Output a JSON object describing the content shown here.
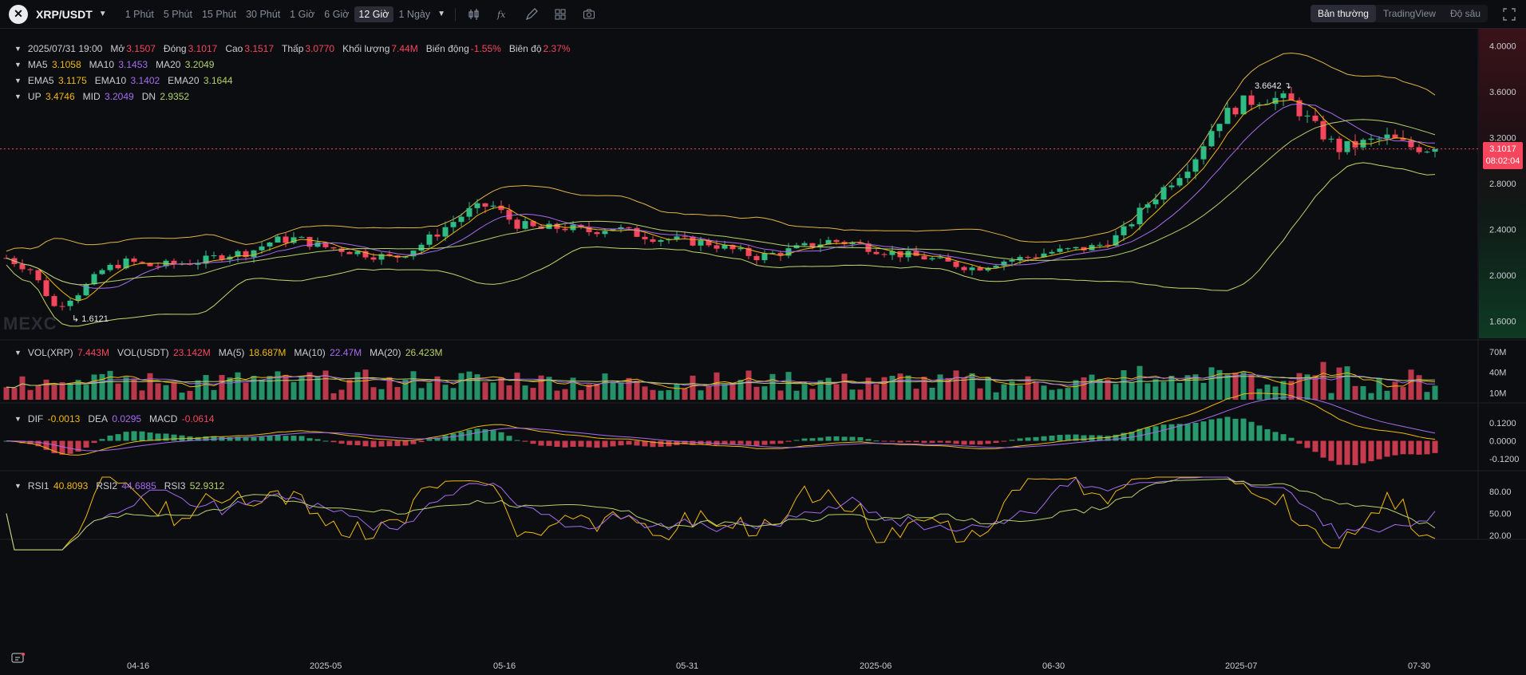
{
  "toolbar": {
    "symbol": "XRP/USDT",
    "intervals": [
      "1 Phút",
      "5 Phút",
      "15 Phút",
      "30 Phút",
      "1 Giờ",
      "6 Giờ",
      "12 Giờ",
      "1 Ngày"
    ],
    "active_interval": "12 Giờ",
    "views": [
      "Bản thường",
      "TradingView",
      "Độ sâu"
    ],
    "active_view": "Bản thường",
    "tools": [
      "candle-type-icon",
      "indicator-icon",
      "draw-icon",
      "layout-icon",
      "camera-icon"
    ]
  },
  "ohlc": {
    "date": "2025/07/31 19:00",
    "open_label": "Mở",
    "open": "3.1507",
    "close_label": "Đóng",
    "close": "3.1017",
    "high_label": "Cao",
    "high": "3.1517",
    "low_label": "Thấp",
    "low": "3.0770",
    "volume_label": "Khối lượng",
    "volume": "7.44M",
    "change_label": "Biến động",
    "change": "-1.55%",
    "amplitude_label": "Biên độ",
    "amplitude": "2.37%"
  },
  "ma": {
    "ma5_label": "MA5",
    "ma5": "3.1058",
    "ma10_label": "MA10",
    "ma10": "3.1453",
    "ma20_label": "MA20",
    "ma20": "3.2049"
  },
  "ema": {
    "ema5_label": "EMA5",
    "ema5": "3.1175",
    "ema10_label": "EMA10",
    "ema10": "3.1402",
    "ema20_label": "EMA20",
    "ema20": "3.1644"
  },
  "boll": {
    "up_label": "UP",
    "up": "3.4746",
    "mid_label": "MID",
    "mid": "3.2049",
    "dn_label": "DN",
    "dn": "2.9352"
  },
  "vol": {
    "xrp_label": "VOL(XRP)",
    "xrp": "7.443M",
    "usdt_label": "VOL(USDT)",
    "usdt": "23.142M",
    "ma5_label": "MA(5)",
    "ma5": "18.687M",
    "ma10_label": "MA(10)",
    "ma10": "22.47M",
    "ma20_label": "MA(20)",
    "ma20": "26.423M"
  },
  "macd": {
    "dif_label": "DIF",
    "dif": "-0.0013",
    "dea_label": "DEA",
    "dea": "0.0295",
    "macd_label": "MACD",
    "macd": "-0.0614"
  },
  "rsi": {
    "rsi1_label": "RSI1",
    "rsi1": "40.8093",
    "rsi2_label": "RSI2",
    "rsi2": "44.6885",
    "rsi3_label": "RSI3",
    "rsi3": "52.9312"
  },
  "watermark": "MEXC",
  "last_price": "3.1017",
  "countdown": "08:02:04",
  "high_marker": "3.6642",
  "low_marker": "1.6121",
  "colors": {
    "up": "#2ebd85",
    "down": "#f6465d",
    "ma5": "#f0b90b",
    "ma10": "#a46cf0",
    "ma20": "#b5d16a"
  },
  "chart_data": {
    "type": "candlestick",
    "price_axis": [
      "4.0000",
      "3.6000",
      "3.2000",
      "2.8000",
      "2.4000",
      "2.0000",
      "1.6000"
    ],
    "volume_axis": [
      "70M",
      "40M",
      "10M"
    ],
    "macd_axis": [
      "0.1200",
      "0.0000",
      "-0.1200"
    ],
    "rsi_axis": [
      "80.00",
      "50.00",
      "20.00"
    ],
    "dates": [
      "04-16",
      "2025-05",
      "05-16",
      "05-31",
      "2025-06",
      "06-30",
      "2025-07",
      "07-30"
    ],
    "price_range": [
      1.45,
      4.15
    ],
    "close_path": [
      2.15,
      2.05,
      1.72,
      1.85,
      2.05,
      2.12,
      2.08,
      2.1,
      2.12,
      2.18,
      2.2,
      2.3,
      2.32,
      2.25,
      2.22,
      2.18,
      2.15,
      2.25,
      2.4,
      2.55,
      2.62,
      2.45,
      2.4,
      2.42,
      2.38,
      2.42,
      2.36,
      2.32,
      2.3,
      2.28,
      2.22,
      2.16,
      2.2,
      2.25,
      2.3,
      2.28,
      2.22,
      2.18,
      2.15,
      2.1,
      2.06,
      2.12,
      2.15,
      2.2,
      2.22,
      2.25,
      2.35,
      2.6,
      2.8,
      3.0,
      3.35,
      3.5,
      3.55,
      3.52,
      3.3,
      3.1,
      3.15,
      3.2,
      3.12,
      3.1
    ]
  }
}
